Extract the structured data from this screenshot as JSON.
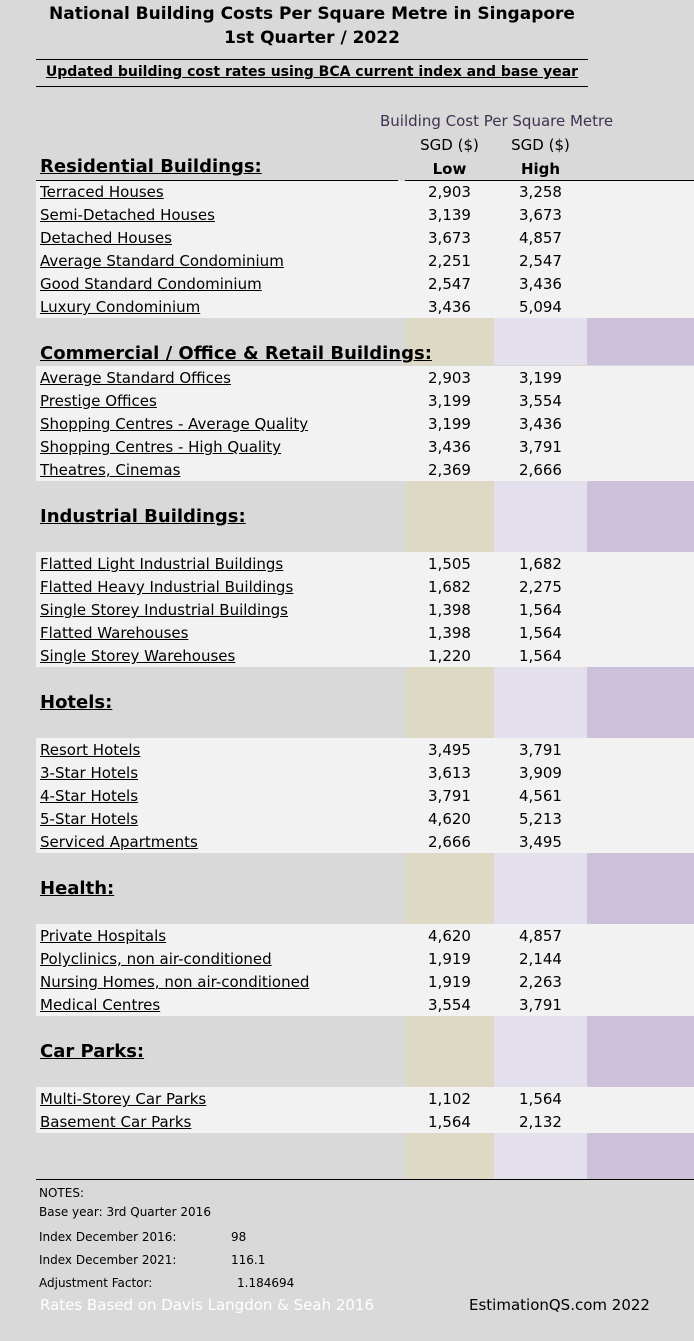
{
  "title_line1": "National Building Costs Per Square Metre in Singapore",
  "title_line2": "1st Quarter / 2022",
  "subtitle": "Updated building cost rates using BCA current index and base year",
  "header": {
    "main": "Building Cost Per Square Metre",
    "currency_low": "SGD ($)",
    "currency_high": "SGD ($)",
    "low": "Low",
    "high": "High"
  },
  "sections": [
    {
      "title": "Residential Buildings:",
      "items": [
        {
          "name": "Terraced Houses",
          "low": "2,903",
          "high": "3,258"
        },
        {
          "name": "Semi-Detached Houses",
          "low": "3,139",
          "high": "3,673"
        },
        {
          "name": "Detached Houses",
          "low": "3,673",
          "high": "4,857"
        },
        {
          "name": "Average Standard Condominium",
          "low": "2,251",
          "high": "2,547"
        },
        {
          "name": "Good Standard Condominium",
          "low": "2,547",
          "high": "3,436"
        },
        {
          "name": "Luxury Condominium",
          "low": "3,436",
          "high": "5,094"
        }
      ]
    },
    {
      "title": "Commercial / Office & Retail Buildings:",
      "items": [
        {
          "name": "Average Standard Offices",
          "low": "2,903",
          "high": "3,199"
        },
        {
          "name": "Prestige Offices",
          "low": "3,199",
          "high": "3,554"
        },
        {
          "name": "Shopping Centres - Average Quality",
          "low": "3,199",
          "high": "3,436"
        },
        {
          "name": "Shopping Centres - High Quality",
          "low": "3,436",
          "high": "3,791"
        },
        {
          "name": "Theatres, Cinemas",
          "low": "2,369",
          "high": "2,666"
        }
      ]
    },
    {
      "title": "Industrial Buildings:",
      "items": [
        {
          "name": "Flatted Light Industrial Buildings",
          "low": "1,505",
          "high": "1,682"
        },
        {
          "name": "Flatted Heavy Industrial Buildings",
          "low": "1,682",
          "high": "2,275"
        },
        {
          "name": "Single Storey Industrial Buildings",
          "low": "1,398",
          "high": "1,564"
        },
        {
          "name": "Flatted Warehouses",
          "low": "1,398",
          "high": "1,564"
        },
        {
          "name": "Single Storey Warehouses",
          "low": "1,220",
          "high": "1,564"
        }
      ]
    },
    {
      "title": "Hotels:",
      "items": [
        {
          "name": "Resort Hotels",
          "low": "3,495",
          "high": "3,791"
        },
        {
          "name": "3-Star Hotels",
          "low": "3,613",
          "high": "3,909"
        },
        {
          "name": "4-Star Hotels",
          "low": "3,791",
          "high": "4,561"
        },
        {
          "name": "5-Star Hotels",
          "low": "4,620",
          "high": "5,213"
        },
        {
          "name": "Serviced Apartments",
          "low": "2,666",
          "high": "3,495"
        }
      ]
    },
    {
      "title": "Health:",
      "items": [
        {
          "name": "Private Hospitals",
          "low": "4,620",
          "high": "4,857"
        },
        {
          "name": "Polyclinics, non air-conditioned",
          "low": "1,919",
          "high": "2,144"
        },
        {
          "name": "Nursing Homes, non air-conditioned",
          "low": "1,919",
          "high": "2,263"
        },
        {
          "name": "Medical Centres",
          "low": "3,554",
          "high": "3,791"
        }
      ]
    },
    {
      "title": "Car Parks:",
      "items": [
        {
          "name": "Multi-Storey Car Parks",
          "low": "1,102",
          "high": "1,564"
        },
        {
          "name": "Basement Car Parks",
          "low": "1,564",
          "high": "2,132"
        }
      ]
    }
  ],
  "notes": {
    "heading": "NOTES:",
    "base_year": "Base year: 3rd Quarter 2016",
    "index_2016_label": "Index December 2016:",
    "index_2016_value": "98",
    "index_2021_label": "Index December 2021:",
    "index_2021_value": "116.1",
    "adjustment_label": "Adjustment Factor:",
    "adjustment_value": "1.184694"
  },
  "footer": {
    "source": "Rates Based on Davis Langdon & Seah 2016",
    "site": "EstimationQS.com 2022"
  }
}
